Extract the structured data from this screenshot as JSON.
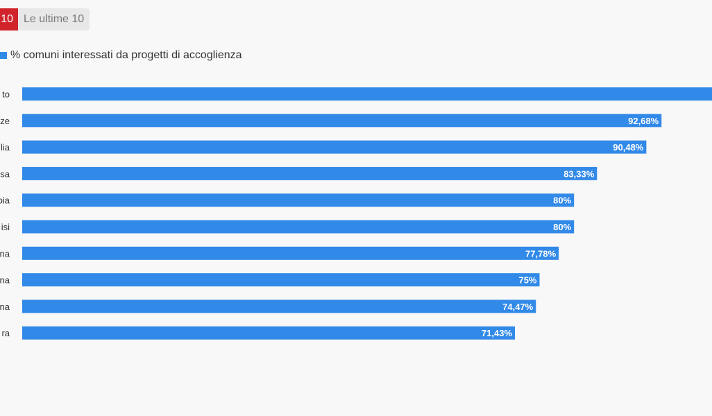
{
  "toggle": {
    "active_label": "10",
    "inactive_label": "Le ultime 10"
  },
  "colors": {
    "bar": "#3189e8",
    "active_toggle": "#d0242a",
    "background": "#f8f8f8"
  },
  "chart_data": {
    "type": "bar",
    "orientation": "horizontal",
    "categories": [
      "to",
      "ze",
      "lia",
      "sa",
      "bia",
      "isi",
      "na",
      "na",
      "na",
      "ra"
    ],
    "series": [
      {
        "name": "% comuni interessati da progetti di accoglienza",
        "values": [
          100,
          92.68,
          90.48,
          83.33,
          80,
          80,
          77.78,
          75,
          74.47,
          71.43
        ],
        "labels": [
          "",
          "92,68%",
          "90,48%",
          "83,33%",
          "80%",
          "80%",
          "77,78%",
          "75%",
          "74,47%",
          "71,43%"
        ]
      }
    ],
    "xlim": [
      0,
      100
    ],
    "legend": "top-left",
    "grid": false
  }
}
